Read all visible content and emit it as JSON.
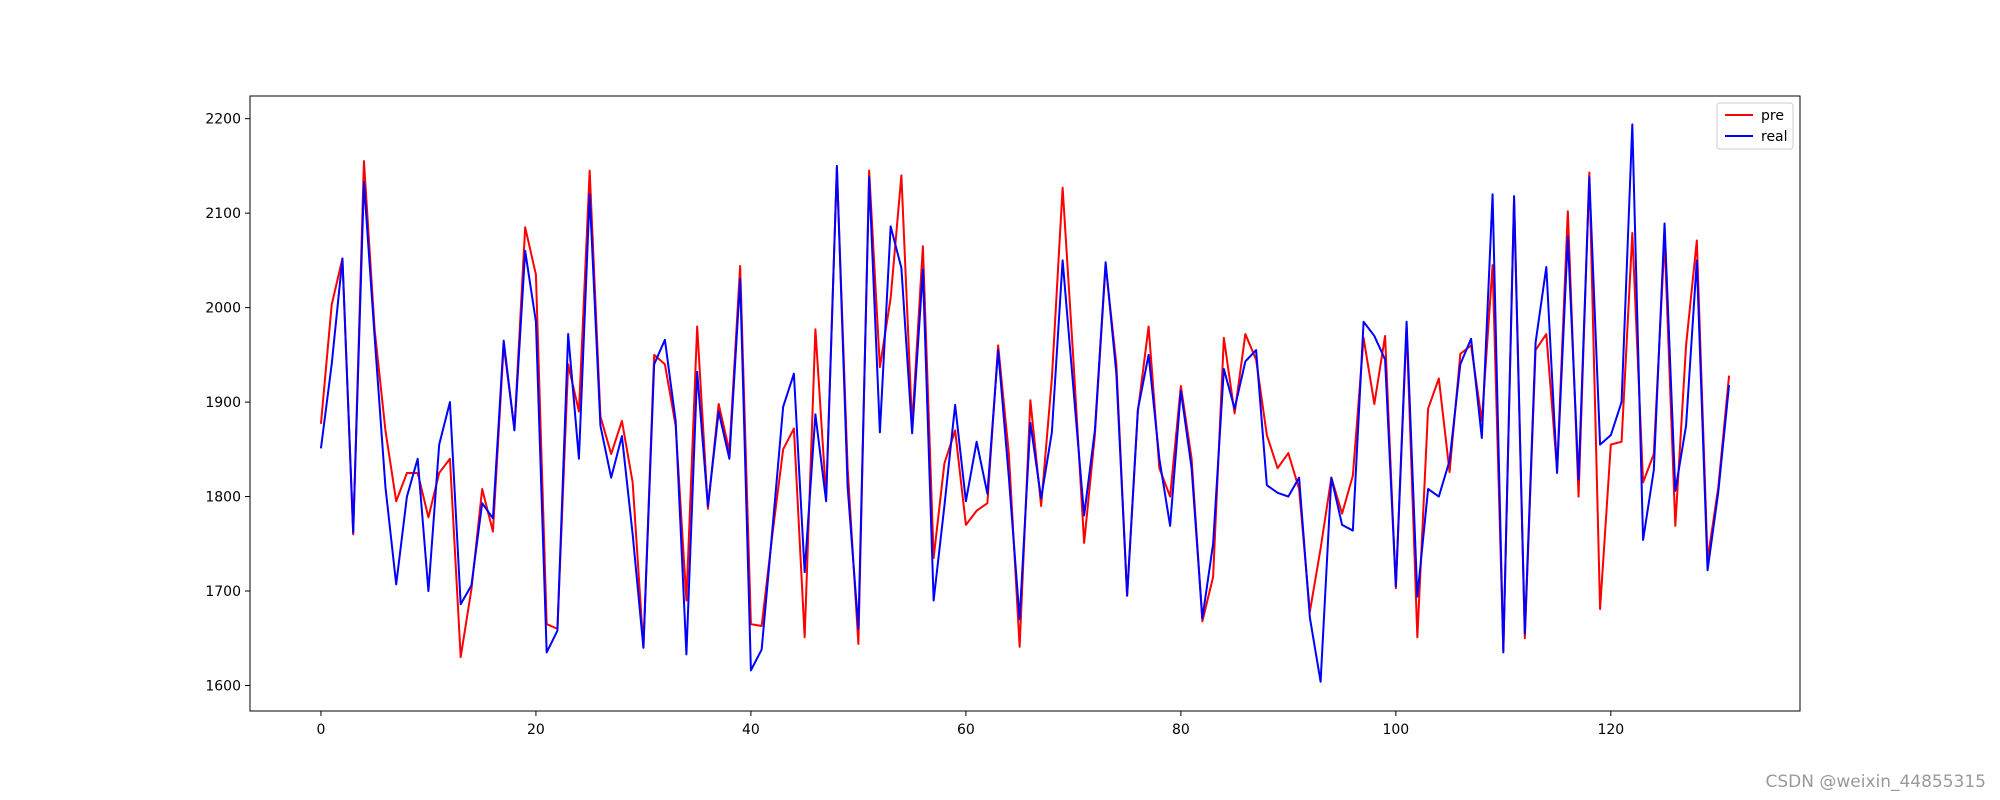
{
  "chart_data": {
    "type": "line",
    "xlim": [
      -6.6,
      137.6
    ],
    "ylim": [
      1573,
      2224
    ],
    "xticks": [
      0,
      20,
      40,
      60,
      80,
      100,
      120
    ],
    "yticks": [
      1600,
      1700,
      1800,
      1900,
      2000,
      2100,
      2200
    ],
    "grid": false,
    "legend_position": "top-right",
    "series": [
      {
        "name": "pre",
        "color": "#ff0000",
        "values": [
          1877,
          2003,
          2052,
          1760,
          2155,
          1976,
          1870,
          1795,
          1825,
          1825,
          1778,
          1825,
          1840,
          1630,
          1702,
          1808,
          1763,
          1960,
          1872,
          2085,
          2035,
          1665,
          1660,
          1940,
          1890,
          2145,
          1885,
          1845,
          1880,
          1815,
          1640,
          1950,
          1940,
          1875,
          1690,
          1980,
          1787,
          1898,
          1848,
          2044,
          1665,
          1663,
          1760,
          1850,
          1872,
          1651,
          1977,
          1800,
          2148,
          1830,
          1644,
          2145,
          1937,
          2010,
          2140,
          1875,
          2065,
          1735,
          1835,
          1870,
          1770,
          1785,
          1793,
          1960,
          1845,
          1641,
          1902,
          1790,
          1925,
          2127,
          1945,
          1751,
          1865,
          2045,
          1940,
          1695,
          1890,
          1980,
          1830,
          1800,
          1917,
          1840,
          1668,
          1715,
          1968,
          1888,
          1972,
          1945,
          1865,
          1830,
          1846,
          1808,
          1678,
          1745,
          1820,
          1782,
          1822,
          1968,
          1898,
          1970,
          1703,
          1980,
          1651,
          1893,
          1925,
          1826,
          1951,
          1960,
          1880,
          2045,
          1637,
          2115,
          1650,
          1955,
          1972,
          1828,
          2102,
          1800,
          2143,
          1681,
          1855,
          1858,
          2079,
          1815,
          1845,
          2072,
          1769,
          1960,
          2071,
          1733,
          1810,
          1928
        ]
      },
      {
        "name": "real",
        "color": "#0000ff",
        "values": [
          1851,
          1940,
          2052,
          1762,
          2133,
          1968,
          1810,
          1707,
          1800,
          1840,
          1700,
          1855,
          1900,
          1686,
          1706,
          1793,
          1777,
          1965,
          1870,
          2060,
          1985,
          1635,
          1658,
          1972,
          1840,
          2120,
          1875,
          1820,
          1864,
          1760,
          1640,
          1940,
          1966,
          1880,
          1633,
          1932,
          1790,
          1890,
          1840,
          2030,
          1616,
          1638,
          1765,
          1895,
          1930,
          1720,
          1887,
          1795,
          2150,
          1810,
          1660,
          2138,
          1868,
          2086,
          2042,
          1867,
          2040,
          1690,
          1790,
          1897,
          1795,
          1858,
          1803,
          1955,
          1820,
          1670,
          1878,
          1798,
          1868,
          2050,
          1915,
          1780,
          1870,
          2048,
          1930,
          1695,
          1892,
          1950,
          1840,
          1769,
          1912,
          1830,
          1671,
          1750,
          1935,
          1893,
          1943,
          1955,
          1812,
          1804,
          1800,
          1820,
          1672,
          1604,
          1820,
          1770,
          1764,
          1985,
          1970,
          1945,
          1705,
          1985,
          1694,
          1808,
          1800,
          1838,
          1940,
          1967,
          1862,
          2120,
          1635,
          2118,
          1655,
          1963,
          2043,
          1825,
          2075,
          1818,
          2138,
          1855,
          1865,
          1900,
          2194,
          1754,
          1828,
          2089,
          1806,
          1875,
          2050,
          1722,
          1805,
          1918
        ]
      }
    ]
  },
  "watermark": "CSDN @weixin_44855315"
}
